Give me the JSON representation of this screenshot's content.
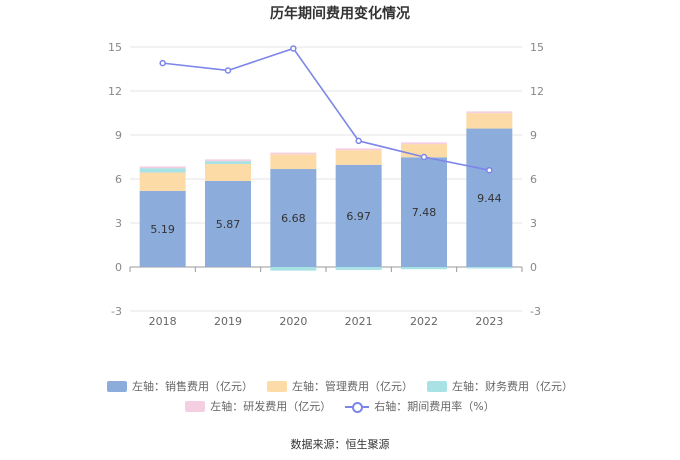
{
  "chart_data": {
    "type": "bar",
    "title": "历年期间费用变化情况",
    "categories": [
      "2018",
      "2019",
      "2020",
      "2021",
      "2022",
      "2023"
    ],
    "stacked": true,
    "series": [
      {
        "name": "左轴：销售费用（亿元）",
        "axis": "left",
        "kind": "bar",
        "values": [
          5.19,
          5.87,
          6.68,
          6.97,
          7.48,
          9.44
        ],
        "color": "#8caddb",
        "labels": [
          "5.19",
          "5.87",
          "6.68",
          "6.97",
          "7.48",
          "9.44"
        ]
      },
      {
        "name": "左轴：管理费用（亿元）",
        "axis": "left",
        "kind": "bar",
        "values": [
          1.25,
          1.15,
          1.0,
          1.0,
          0.9,
          1.05
        ],
        "color": "#fddba6"
      },
      {
        "name": "左轴：财务费用（亿元）",
        "axis": "left",
        "kind": "bar",
        "values": [
          0.3,
          0.2,
          -0.25,
          -0.2,
          -0.15,
          -0.1
        ],
        "color": "#a9e2e4"
      },
      {
        "name": "左轴：研发费用（亿元）",
        "axis": "left",
        "kind": "bar",
        "values": [
          0.12,
          0.12,
          0.12,
          0.12,
          0.12,
          0.12
        ],
        "color": "#f4cfe2"
      },
      {
        "name": "右轴：期间费用率（%）",
        "axis": "right",
        "kind": "line",
        "values": [
          13.9,
          13.4,
          14.9,
          8.6,
          7.5,
          6.6
        ],
        "color": "#7c85e8"
      }
    ],
    "y_left": {
      "min": -3,
      "max": 15,
      "ticks": [
        "-3",
        "0",
        "3",
        "6",
        "9",
        "12",
        "15"
      ]
    },
    "y_right": {
      "min": -3,
      "max": 15,
      "ticks": [
        "-3",
        "0",
        "3",
        "6",
        "9",
        "12",
        "15"
      ]
    },
    "legend_position": "bottom",
    "grid": true
  },
  "legend": {
    "row1": [
      {
        "label": "左轴：销售费用（亿元）",
        "color": "#8caddb"
      },
      {
        "label": "左轴：管理费用（亿元）",
        "color": "#fddba6"
      },
      {
        "label": "左轴：财务费用（亿元）",
        "color": "#a9e2e4"
      }
    ],
    "row2": [
      {
        "label": "左轴：研发费用（亿元）",
        "color": "#f4cfe2"
      },
      {
        "label": "右轴：期间费用率（%）",
        "color": "#7c85e8"
      }
    ]
  },
  "source": "数据来源：恒生聚源"
}
